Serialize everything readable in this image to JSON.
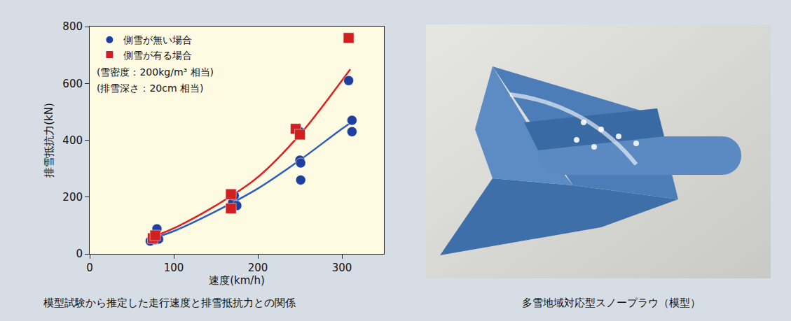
{
  "chart_data": {
    "type": "scatter",
    "title": "模型試験から推定した走行速度と排雪抵抗力との関係",
    "x_label": "速度(km/h)",
    "y_label": "排雪抵抗力(kN)",
    "annotations": [
      "(雪密度：200kg/m³ 相当)",
      "(排雪深さ：20cm 相当)"
    ],
    "xlim": [
      0,
      350
    ],
    "xticks": [
      0,
      100,
      200,
      300
    ],
    "ylim": [
      0,
      800
    ],
    "yticks": [
      0,
      200,
      400,
      600,
      800
    ],
    "grid": false,
    "legend": "upper left",
    "series": [
      {
        "name": "側雪が無い場合",
        "type": "scatter",
        "marker": "circle",
        "color": "#1f3f9e",
        "x": [
          72,
          78,
          80,
          82,
          170,
          172,
          175,
          250,
          250,
          251,
          251,
          308,
          312,
          312
        ],
        "values": [
          45,
          50,
          88,
          52,
          180,
          205,
          170,
          430,
          330,
          320,
          260,
          610,
          470,
          430
        ]
      },
      {
        "name": "側雪が有る場合",
        "type": "scatter",
        "marker": "square",
        "color": "#d01f1f",
        "x": [
          75,
          78,
          168,
          168,
          245,
          250,
          308
        ],
        "values": [
          55,
          65,
          210,
          160,
          440,
          420,
          760
        ]
      },
      {
        "type": "line",
        "color": "#2b5cc6",
        "x": [
          75,
          100,
          150,
          200,
          250,
          300,
          315
        ],
        "values": [
          55,
          80,
          150,
          230,
          330,
          440,
          470
        ]
      },
      {
        "type": "line",
        "color": "#e02020",
        "x": [
          75,
          100,
          150,
          200,
          250,
          300,
          310
        ],
        "values": [
          60,
          90,
          170,
          270,
          420,
          610,
          650
        ]
      }
    ]
  },
  "photo": {
    "caption": "多雪地域対応型スノープラウ（模型）"
  }
}
